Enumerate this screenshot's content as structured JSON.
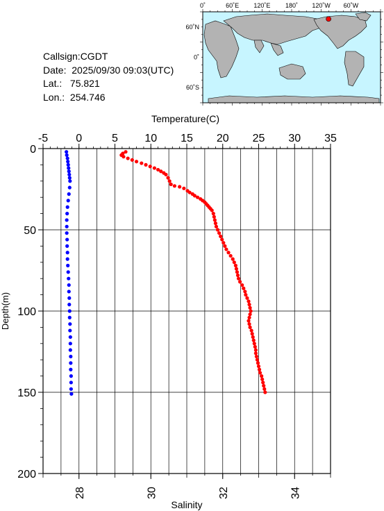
{
  "station": {
    "callsign": "Callsign:CGDT",
    "date": "Date:  2025/09/30 09:03(UTC)",
    "lat": "Lat.:   75.821",
    "lon": "Lon.:  254.746"
  },
  "map": {
    "lon_labels": [
      "0˚",
      "60˚E",
      "120˚E",
      "180˚",
      "120˚W",
      "60˚W"
    ],
    "lat_labels": [
      "60˚N",
      "0˚",
      "60˚S"
    ],
    "marker": {
      "lon": 254.746,
      "lat": 75.821
    },
    "ocean_color": "#c7f5ff",
    "land_color": "#b3b3b3",
    "marker_color": "#ff0000"
  },
  "chart_data": {
    "type": "scatter",
    "top_axis_title": "Temperature(C)",
    "bottom_axis_title": "Salinity",
    "left_axis_title": "Depth(m)",
    "temperature_ticks": [
      "-5",
      "0",
      "5",
      "10",
      "15",
      "20",
      "25",
      "30",
      "35"
    ],
    "salinity_ticks": [
      "28",
      "30",
      "32",
      "34"
    ],
    "depth_ticks": [
      "0",
      "50",
      "100",
      "150",
      "200"
    ],
    "xlim_temperature": [
      -5,
      35
    ],
    "xlim_salinity": [
      27,
      35
    ],
    "ylim_depth": [
      0,
      200
    ],
    "grid": true,
    "series": [
      {
        "color": "#ff0000",
        "axis": "temperature",
        "points": [
          [
            6.5,
            2
          ],
          [
            6.1,
            3
          ],
          [
            5.9,
            4
          ],
          [
            6.2,
            5
          ],
          [
            6.8,
            6
          ],
          [
            7.4,
            7
          ],
          [
            8.0,
            8
          ],
          [
            8.7,
            9
          ],
          [
            9.3,
            10
          ],
          [
            9.9,
            11
          ],
          [
            10.5,
            12
          ],
          [
            11.0,
            13
          ],
          [
            11.4,
            14
          ],
          [
            11.8,
            15
          ],
          [
            12.1,
            16
          ],
          [
            12.4,
            18
          ],
          [
            12.6,
            20
          ],
          [
            12.8,
            22
          ],
          [
            13.3,
            23
          ],
          [
            14.0,
            23.5
          ],
          [
            14.6,
            24.5
          ],
          [
            15.1,
            26
          ],
          [
            15.4,
            27
          ],
          [
            15.8,
            28
          ],
          [
            16.1,
            29
          ],
          [
            16.5,
            30
          ],
          [
            16.9,
            31
          ],
          [
            17.2,
            32
          ],
          [
            17.5,
            33
          ],
          [
            17.7,
            34
          ],
          [
            17.9,
            35
          ],
          [
            18.1,
            36
          ],
          [
            18.3,
            37
          ],
          [
            18.5,
            38
          ],
          [
            18.7,
            40
          ],
          [
            18.8,
            42
          ],
          [
            18.9,
            44
          ],
          [
            19.0,
            46
          ],
          [
            19.1,
            48
          ],
          [
            19.3,
            50
          ],
          [
            19.5,
            52
          ],
          [
            19.7,
            54
          ],
          [
            19.9,
            56
          ],
          [
            20.1,
            58
          ],
          [
            20.3,
            60
          ],
          [
            20.5,
            62
          ],
          [
            20.8,
            64
          ],
          [
            21.1,
            66
          ],
          [
            21.4,
            68
          ],
          [
            21.6,
            70
          ],
          [
            21.8,
            72
          ],
          [
            21.9,
            74
          ],
          [
            22.0,
            76
          ],
          [
            22.1,
            78
          ],
          [
            22.2,
            80
          ],
          [
            22.4,
            82
          ],
          [
            22.7,
            84
          ],
          [
            22.9,
            86
          ],
          [
            23.1,
            88
          ],
          [
            23.2,
            90
          ],
          [
            23.4,
            92
          ],
          [
            23.6,
            94
          ],
          [
            23.7,
            96
          ],
          [
            23.8,
            98
          ],
          [
            23.9,
            100
          ],
          [
            23.8,
            102
          ],
          [
            23.7,
            104
          ],
          [
            23.6,
            106
          ],
          [
            23.7,
            108
          ],
          [
            23.8,
            110
          ],
          [
            24.0,
            112
          ],
          [
            24.1,
            114
          ],
          [
            24.2,
            116
          ],
          [
            24.3,
            118
          ],
          [
            24.4,
            120
          ],
          [
            24.5,
            122
          ],
          [
            24.6,
            124
          ],
          [
            24.6,
            126
          ],
          [
            24.7,
            128
          ],
          [
            24.8,
            130
          ],
          [
            24.9,
            132
          ],
          [
            25.0,
            134
          ],
          [
            25.1,
            136
          ],
          [
            25.2,
            138
          ],
          [
            25.4,
            140
          ],
          [
            25.5,
            142
          ],
          [
            25.6,
            144
          ],
          [
            25.7,
            146
          ],
          [
            25.8,
            148
          ],
          [
            25.9,
            150
          ]
        ]
      },
      {
        "color": "#0000ff",
        "axis": "salinity",
        "points": [
          [
            27.65,
            2
          ],
          [
            27.66,
            4
          ],
          [
            27.68,
            6
          ],
          [
            27.69,
            8
          ],
          [
            27.7,
            10
          ],
          [
            27.71,
            12
          ],
          [
            27.72,
            14
          ],
          [
            27.73,
            16
          ],
          [
            27.74,
            18
          ],
          [
            27.75,
            20
          ],
          [
            27.74,
            24
          ],
          [
            27.72,
            28
          ],
          [
            27.7,
            32
          ],
          [
            27.68,
            36
          ],
          [
            27.67,
            40
          ],
          [
            27.66,
            44
          ],
          [
            27.66,
            48
          ],
          [
            27.66,
            52
          ],
          [
            27.67,
            56
          ],
          [
            27.67,
            60
          ],
          [
            27.68,
            64
          ],
          [
            27.68,
            68
          ],
          [
            27.69,
            72
          ],
          [
            27.7,
            76
          ],
          [
            27.71,
            80
          ],
          [
            27.72,
            84
          ],
          [
            27.72,
            88
          ],
          [
            27.73,
            92
          ],
          [
            27.73,
            96
          ],
          [
            27.74,
            100
          ],
          [
            27.74,
            104
          ],
          [
            27.75,
            108
          ],
          [
            27.75,
            112
          ],
          [
            27.76,
            116
          ],
          [
            27.76,
            120
          ],
          [
            27.76,
            124
          ],
          [
            27.77,
            128
          ],
          [
            27.77,
            132
          ],
          [
            27.77,
            136
          ],
          [
            27.78,
            140
          ],
          [
            27.78,
            144
          ],
          [
            27.78,
            148
          ],
          [
            27.79,
            151
          ]
        ]
      }
    ]
  }
}
